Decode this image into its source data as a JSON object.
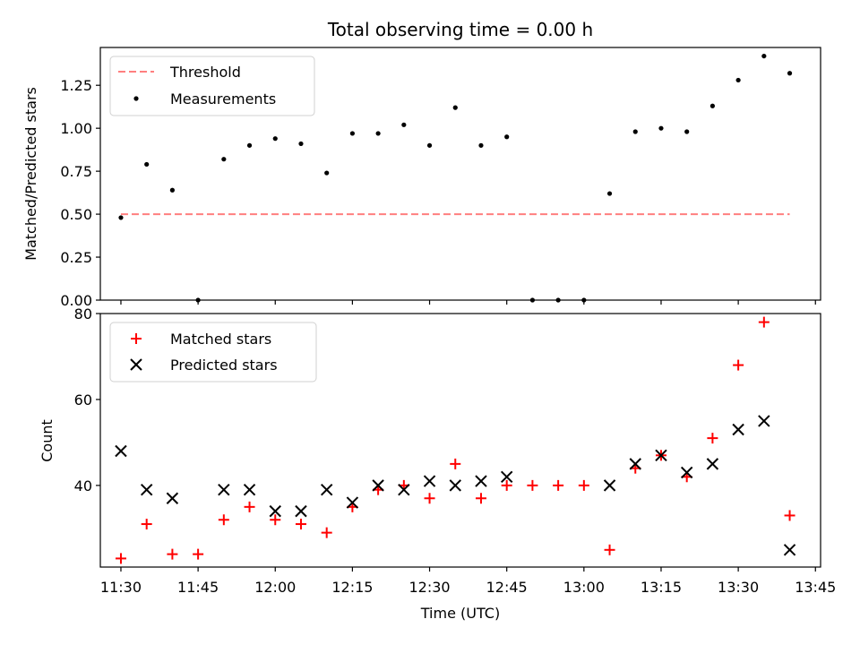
{
  "chart_data": [
    {
      "type": "scatter",
      "title": "Total observing time = 0.00 h",
      "xlabel": "",
      "ylabel": "Matched/Predicted stars",
      "xlim": [
        "11:26",
        "13:46"
      ],
      "ylim": [
        0,
        1.47
      ],
      "x_ticks": [
        "11:30",
        "11:45",
        "12:00",
        "12:15",
        "12:30",
        "12:45",
        "13:00",
        "13:15",
        "13:30",
        "13:45"
      ],
      "y_ticks": [
        "0.00",
        "0.25",
        "0.50",
        "0.75",
        "1.00",
        "1.25"
      ],
      "y_tick_values": [
        0,
        0.25,
        0.5,
        0.75,
        1.0,
        1.25
      ],
      "legend_position": "upper left",
      "threshold": {
        "name": "Threshold",
        "color": "#ff7f7f",
        "style": "dashed",
        "x": [
          "11:30",
          "13:40"
        ],
        "y": [
          0.5,
          0.5
        ]
      },
      "series": [
        {
          "name": "Measurements",
          "marker": "dot",
          "color": "#000000",
          "x": [
            "11:30",
            "11:35",
            "11:40",
            "11:45",
            "11:50",
            "11:55",
            "12:00",
            "12:05",
            "12:10",
            "12:15",
            "12:20",
            "12:25",
            "12:30",
            "12:35",
            "12:40",
            "12:45",
            "12:50",
            "12:55",
            "13:00",
            "13:05",
            "13:10",
            "13:15",
            "13:20",
            "13:25",
            "13:30",
            "13:35",
            "13:40"
          ],
          "y": [
            0.48,
            0.79,
            0.64,
            0.0,
            0.82,
            0.9,
            0.94,
            0.91,
            0.74,
            0.97,
            0.97,
            1.02,
            0.9,
            1.12,
            0.9,
            0.95,
            0.0,
            0.0,
            0.0,
            0.62,
            0.98,
            1.0,
            0.98,
            1.13,
            1.28,
            1.42,
            1.32
          ]
        }
      ]
    },
    {
      "type": "scatter",
      "title": "",
      "xlabel": "Time (UTC)",
      "ylabel": "Count",
      "xlim": [
        "11:26",
        "13:46"
      ],
      "ylim": [
        21,
        80
      ],
      "x_ticks": [
        "11:30",
        "11:45",
        "12:00",
        "12:15",
        "12:30",
        "12:45",
        "13:00",
        "13:15",
        "13:30",
        "13:45"
      ],
      "y_ticks": [
        "40",
        "60",
        "80"
      ],
      "y_tick_values": [
        40,
        60,
        80
      ],
      "legend_position": "upper left",
      "series": [
        {
          "name": "Matched stars",
          "marker": "plus",
          "color": "#ff0000",
          "x": [
            "11:30",
            "11:35",
            "11:40",
            "11:45",
            "11:50",
            "11:55",
            "12:00",
            "12:05",
            "12:10",
            "12:15",
            "12:20",
            "12:25",
            "12:30",
            "12:35",
            "12:40",
            "12:45",
            "12:50",
            "12:55",
            "13:00",
            "13:05",
            "13:10",
            "13:15",
            "13:20",
            "13:25",
            "13:30",
            "13:35",
            "13:40"
          ],
          "y": [
            23,
            31,
            24,
            24,
            32,
            35,
            32,
            31,
            29,
            35,
            39,
            40,
            37,
            45,
            37,
            40,
            40,
            40,
            40,
            25,
            44,
            47,
            42,
            51,
            68,
            78,
            33
          ]
        },
        {
          "name": "Predicted stars",
          "marker": "x",
          "color": "#000000",
          "x": [
            "11:30",
            "11:35",
            "11:40",
            "11:50",
            "11:55",
            "12:00",
            "12:05",
            "12:10",
            "12:15",
            "12:20",
            "12:25",
            "12:30",
            "12:35",
            "12:40",
            "12:45",
            "13:05",
            "13:10",
            "13:15",
            "13:20",
            "13:25",
            "13:30",
            "13:35",
            "13:40"
          ],
          "y": [
            48,
            39,
            37,
            39,
            39,
            34,
            34,
            39,
            36,
            40,
            39,
            41,
            40,
            41,
            42,
            40,
            45,
            47,
            43,
            45,
            53,
            55,
            25
          ]
        }
      ]
    }
  ]
}
